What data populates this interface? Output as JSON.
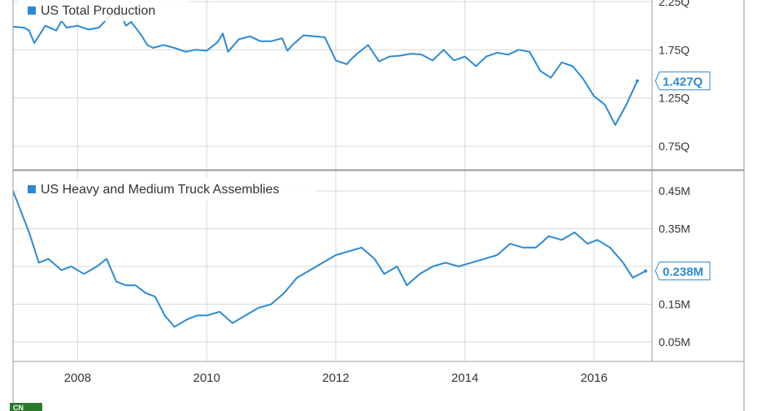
{
  "colors": {
    "series": "#2a8ad4",
    "grid": "#d9d9d9",
    "axis": "#bbbbbb",
    "text": "#333333"
  },
  "x_axis": {
    "ticks": [
      {
        "value": 2008,
        "label": "2008"
      },
      {
        "value": 2010,
        "label": "2010"
      },
      {
        "value": 2012,
        "label": "2012"
      },
      {
        "value": 2014,
        "label": "2014"
      },
      {
        "value": 2016,
        "label": "2016"
      }
    ]
  },
  "chart_data": [
    {
      "type": "line",
      "legend": "US Total Production",
      "legend_position": "top-left",
      "grid": true,
      "ylim": [
        0.5,
        2.3
      ],
      "y_ticks": [
        {
          "value": 2.25,
          "label": "2.25Q"
        },
        {
          "value": 1.75,
          "label": "1.75Q"
        },
        {
          "value": 1.25,
          "label": "1.25Q"
        },
        {
          "value": 0.75,
          "label": "0.75Q"
        }
      ],
      "last_value_label": "1.427Q",
      "series": [
        {
          "x": [
            2007.0,
            2007.17,
            2007.25,
            2007.33,
            2007.5,
            2007.67,
            2007.75,
            2007.83,
            2008.0,
            2008.17,
            2008.33,
            2008.5,
            2008.67,
            2008.75,
            2008.83,
            2009.0,
            2009.08,
            2009.17,
            2009.33,
            2009.5,
            2009.67,
            2009.83,
            2010.0,
            2010.17,
            2010.25,
            2010.33,
            2010.5,
            2010.67,
            2010.83,
            2011.0,
            2011.17,
            2011.25,
            2011.33,
            2011.5,
            2011.67,
            2011.83,
            2012.0,
            2012.17,
            2012.25,
            2012.33,
            2012.5,
            2012.67,
            2012.83,
            2013.0,
            2013.17,
            2013.33,
            2013.5,
            2013.67,
            2013.83,
            2014.0,
            2014.17,
            2014.33,
            2014.5,
            2014.67,
            2014.83,
            2015.0,
            2015.17,
            2015.33,
            2015.5,
            2015.67,
            2015.83,
            2016.0,
            2016.17,
            2016.33,
            2016.5,
            2016.67
          ],
          "y": [
            1.99,
            1.98,
            1.95,
            1.82,
            2.0,
            1.95,
            2.05,
            1.98,
            2.0,
            1.96,
            1.98,
            2.1,
            2.12,
            2.0,
            2.04,
            1.89,
            1.8,
            1.77,
            1.8,
            1.77,
            1.73,
            1.75,
            1.74,
            1.83,
            1.92,
            1.73,
            1.86,
            1.89,
            1.84,
            1.84,
            1.87,
            1.74,
            1.8,
            1.9,
            1.89,
            1.88,
            1.64,
            1.6,
            1.66,
            1.71,
            1.8,
            1.63,
            1.68,
            1.69,
            1.71,
            1.7,
            1.64,
            1.75,
            1.64,
            1.68,
            1.58,
            1.68,
            1.72,
            1.7,
            1.75,
            1.73,
            1.53,
            1.46,
            1.62,
            1.58,
            1.45,
            1.27,
            1.18,
            0.97,
            1.18,
            1.427
          ]
        }
      ]
    },
    {
      "type": "line",
      "legend": "US Heavy and Medium Truck Assemblies",
      "legend_position": "top-left",
      "grid": true,
      "ylim": [
        0.0,
        0.5
      ],
      "y_ticks": [
        {
          "value": 0.45,
          "label": "0.45M"
        },
        {
          "value": 0.35,
          "label": "0.35M"
        },
        {
          "value": 0.25,
          "label": ""
        },
        {
          "value": 0.15,
          "label": "0.15M"
        },
        {
          "value": 0.05,
          "label": "0.05M"
        }
      ],
      "last_value_label": "0.238M",
      "series": [
        {
          "x": [
            2007.0,
            2007.25,
            2007.4,
            2007.55,
            2007.75,
            2007.9,
            2008.1,
            2008.3,
            2008.45,
            2008.6,
            2008.75,
            2008.9,
            2009.05,
            2009.2,
            2009.35,
            2009.5,
            2009.7,
            2009.85,
            2010.0,
            2010.2,
            2010.4,
            2010.6,
            2010.8,
            2011.0,
            2011.2,
            2011.4,
            2011.6,
            2011.8,
            2012.0,
            2012.2,
            2012.4,
            2012.6,
            2012.75,
            2012.95,
            2013.1,
            2013.3,
            2013.5,
            2013.7,
            2013.9,
            2014.1,
            2014.3,
            2014.5,
            2014.7,
            2014.9,
            2015.1,
            2015.3,
            2015.5,
            2015.7,
            2015.9,
            2016.05,
            2016.25,
            2016.45,
            2016.6,
            2016.8
          ],
          "y": [
            0.45,
            0.34,
            0.26,
            0.27,
            0.24,
            0.25,
            0.23,
            0.25,
            0.27,
            0.21,
            0.2,
            0.2,
            0.18,
            0.17,
            0.12,
            0.09,
            0.11,
            0.12,
            0.12,
            0.13,
            0.1,
            0.12,
            0.14,
            0.15,
            0.18,
            0.22,
            0.24,
            0.26,
            0.28,
            0.29,
            0.3,
            0.27,
            0.23,
            0.25,
            0.2,
            0.23,
            0.25,
            0.26,
            0.25,
            0.26,
            0.27,
            0.28,
            0.31,
            0.3,
            0.3,
            0.33,
            0.32,
            0.34,
            0.31,
            0.32,
            0.3,
            0.26,
            0.22,
            0.238
          ]
        }
      ]
    }
  ],
  "footer": {
    "logo_text": "CN"
  }
}
